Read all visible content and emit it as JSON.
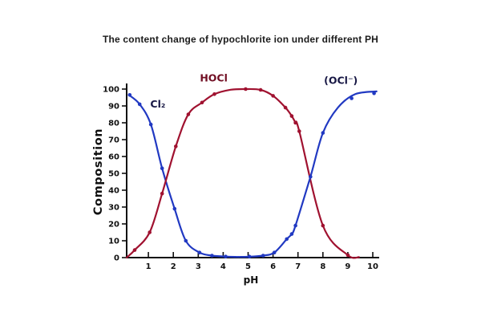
{
  "chart_data": {
    "type": "line",
    "title": "The content change of hypochlorite ion under different PH",
    "xlabel": "pH",
    "ylabel": "Composition",
    "x_ticks": [
      1,
      2,
      3,
      4,
      5,
      6,
      7,
      8,
      9,
      10
    ],
    "y_ticks": [
      0,
      10,
      20,
      30,
      40,
      50,
      60,
      70,
      80,
      90,
      100
    ],
    "xlim": [
      0,
      10.3
    ],
    "ylim": [
      0,
      103
    ],
    "grid": false,
    "legend": "inline-curve-labels",
    "axis_color": "#101010",
    "background": "#ffffff",
    "series": [
      {
        "name": "cl2",
        "label": "Cl₂",
        "color": "#2139c2",
        "label_color": "#171744",
        "label_pos": {
          "x": 1.38,
          "y": 89
        },
        "points": [
          [
            0.25,
            96.5
          ],
          [
            0.65,
            91
          ],
          [
            1.1,
            79
          ],
          [
            1.55,
            53
          ],
          [
            2.05,
            29
          ],
          [
            2.5,
            10
          ],
          [
            3.05,
            3
          ],
          [
            3.55,
            1.2
          ],
          [
            4.1,
            0.6
          ]
        ],
        "curve": [
          [
            0.22,
            96.5
          ],
          [
            0.65,
            91
          ],
          [
            1.1,
            79
          ],
          [
            1.55,
            53
          ],
          [
            2.05,
            29
          ],
          [
            2.5,
            10
          ],
          [
            3.05,
            3
          ],
          [
            3.55,
            1.2
          ],
          [
            4.1,
            0.6
          ],
          [
            4.6,
            0.4
          ]
        ]
      },
      {
        "name": "hocl",
        "label": "HOCl",
        "color": "#a01230",
        "label_color": "#700d22",
        "label_pos": {
          "x": 3.62,
          "y": 104.5
        },
        "points": [
          [
            0.45,
            4.5
          ],
          [
            1.05,
            15
          ],
          [
            1.55,
            38
          ],
          [
            2.1,
            66
          ],
          [
            2.6,
            85
          ],
          [
            3.15,
            92
          ],
          [
            3.65,
            97
          ],
          [
            4.9,
            100
          ],
          [
            5.5,
            99.5
          ],
          [
            6.0,
            96
          ],
          [
            6.5,
            89
          ],
          [
            6.75,
            84
          ],
          [
            6.9,
            80
          ],
          [
            7.05,
            75
          ],
          [
            8.0,
            19
          ],
          [
            9.0,
            1.5
          ]
        ],
        "curve": [
          [
            0.13,
            0
          ],
          [
            0.45,
            4.5
          ],
          [
            1.05,
            15
          ],
          [
            1.55,
            38
          ],
          [
            2.1,
            66
          ],
          [
            2.6,
            85
          ],
          [
            3.15,
            92
          ],
          [
            3.65,
            97
          ],
          [
            4.3,
            99.6
          ],
          [
            4.9,
            100
          ],
          [
            5.5,
            99.5
          ],
          [
            6.0,
            96
          ],
          [
            6.5,
            89
          ],
          [
            6.75,
            84
          ],
          [
            6.9,
            80
          ],
          [
            7.05,
            75
          ],
          [
            8.0,
            19
          ],
          [
            9.0,
            1.5
          ],
          [
            9.45,
            0.3
          ]
        ]
      },
      {
        "name": "ocl",
        "label": "(OCl⁻)",
        "color": "#2139c2",
        "label_color": "#171744",
        "label_pos": {
          "x": 8.72,
          "y": 103
        },
        "points": [
          [
            5.05,
            0.6
          ],
          [
            5.6,
            1.2
          ],
          [
            6.05,
            3
          ],
          [
            6.55,
            11
          ],
          [
            6.75,
            14
          ],
          [
            6.9,
            19
          ],
          [
            7.5,
            48
          ],
          [
            8.0,
            74
          ],
          [
            9.15,
            94.5
          ],
          [
            10.05,
            97.5
          ]
        ],
        "curve": [
          [
            4.6,
            0.4
          ],
          [
            5.05,
            0.5
          ],
          [
            5.6,
            1.2
          ],
          [
            6.05,
            3
          ],
          [
            6.55,
            11
          ],
          [
            6.75,
            14
          ],
          [
            6.9,
            19
          ],
          [
            7.5,
            48
          ],
          [
            8.0,
            74
          ],
          [
            8.6,
            89
          ],
          [
            9.3,
            97
          ],
          [
            10.15,
            98.6
          ]
        ]
      }
    ]
  }
}
